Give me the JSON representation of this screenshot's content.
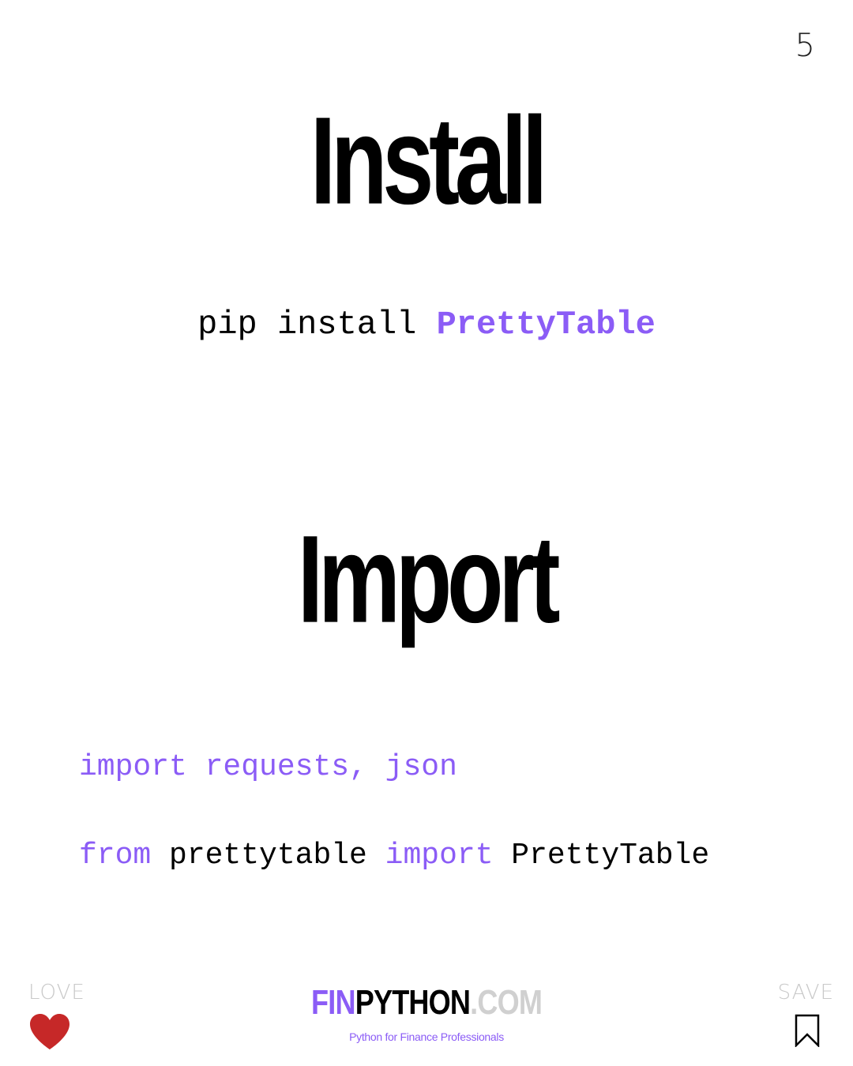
{
  "page_number": "5",
  "colors": {
    "accent": "#8b5cf6",
    "text": "#000000",
    "muted": "#c9c9c9",
    "heart": "#c62828"
  },
  "install": {
    "heading": "Install",
    "command_prefix": "pip install ",
    "package": "PrettyTable"
  },
  "import": {
    "heading": "Import",
    "line1": {
      "kw_import": "import",
      "modules": " requests, json"
    },
    "line2": {
      "kw_from": "from",
      "module": " prettytable ",
      "kw_import": "import",
      "name": " PrettyTable"
    }
  },
  "footer": {
    "love_label": "LOVE",
    "save_label": "SAVE",
    "heart_icon": "heart-icon",
    "bookmark_icon": "bookmark-icon",
    "logo": {
      "fin": "FIN",
      "python": "PYTHON",
      "com": ".COM"
    },
    "tagline": "Python for Finance Professionals"
  }
}
